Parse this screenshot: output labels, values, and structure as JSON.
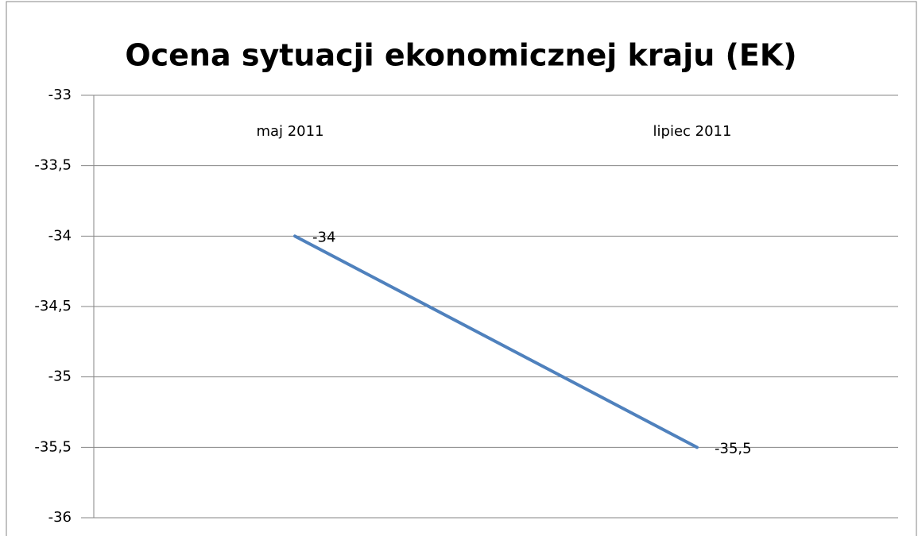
{
  "chart_data": {
    "type": "line",
    "title": "Ocena sytuacji ekonomicznej kraju (EK)",
    "categories": [
      "maj 2011",
      "lipiec 2011"
    ],
    "values": [
      -34,
      -35.5
    ],
    "value_labels": [
      "-34",
      "-35,5"
    ],
    "color": "#4f81bd",
    "ylim": [
      -36,
      -33
    ],
    "yticks": [
      -33,
      {
        "value": -33.5,
        "label": "-33,5"
      },
      -34,
      {
        "value": -34.5,
        "label": "-34,5"
      },
      -35,
      {
        "value": -35.5,
        "label": "-35,5"
      },
      -36
    ],
    "grid": true
  }
}
